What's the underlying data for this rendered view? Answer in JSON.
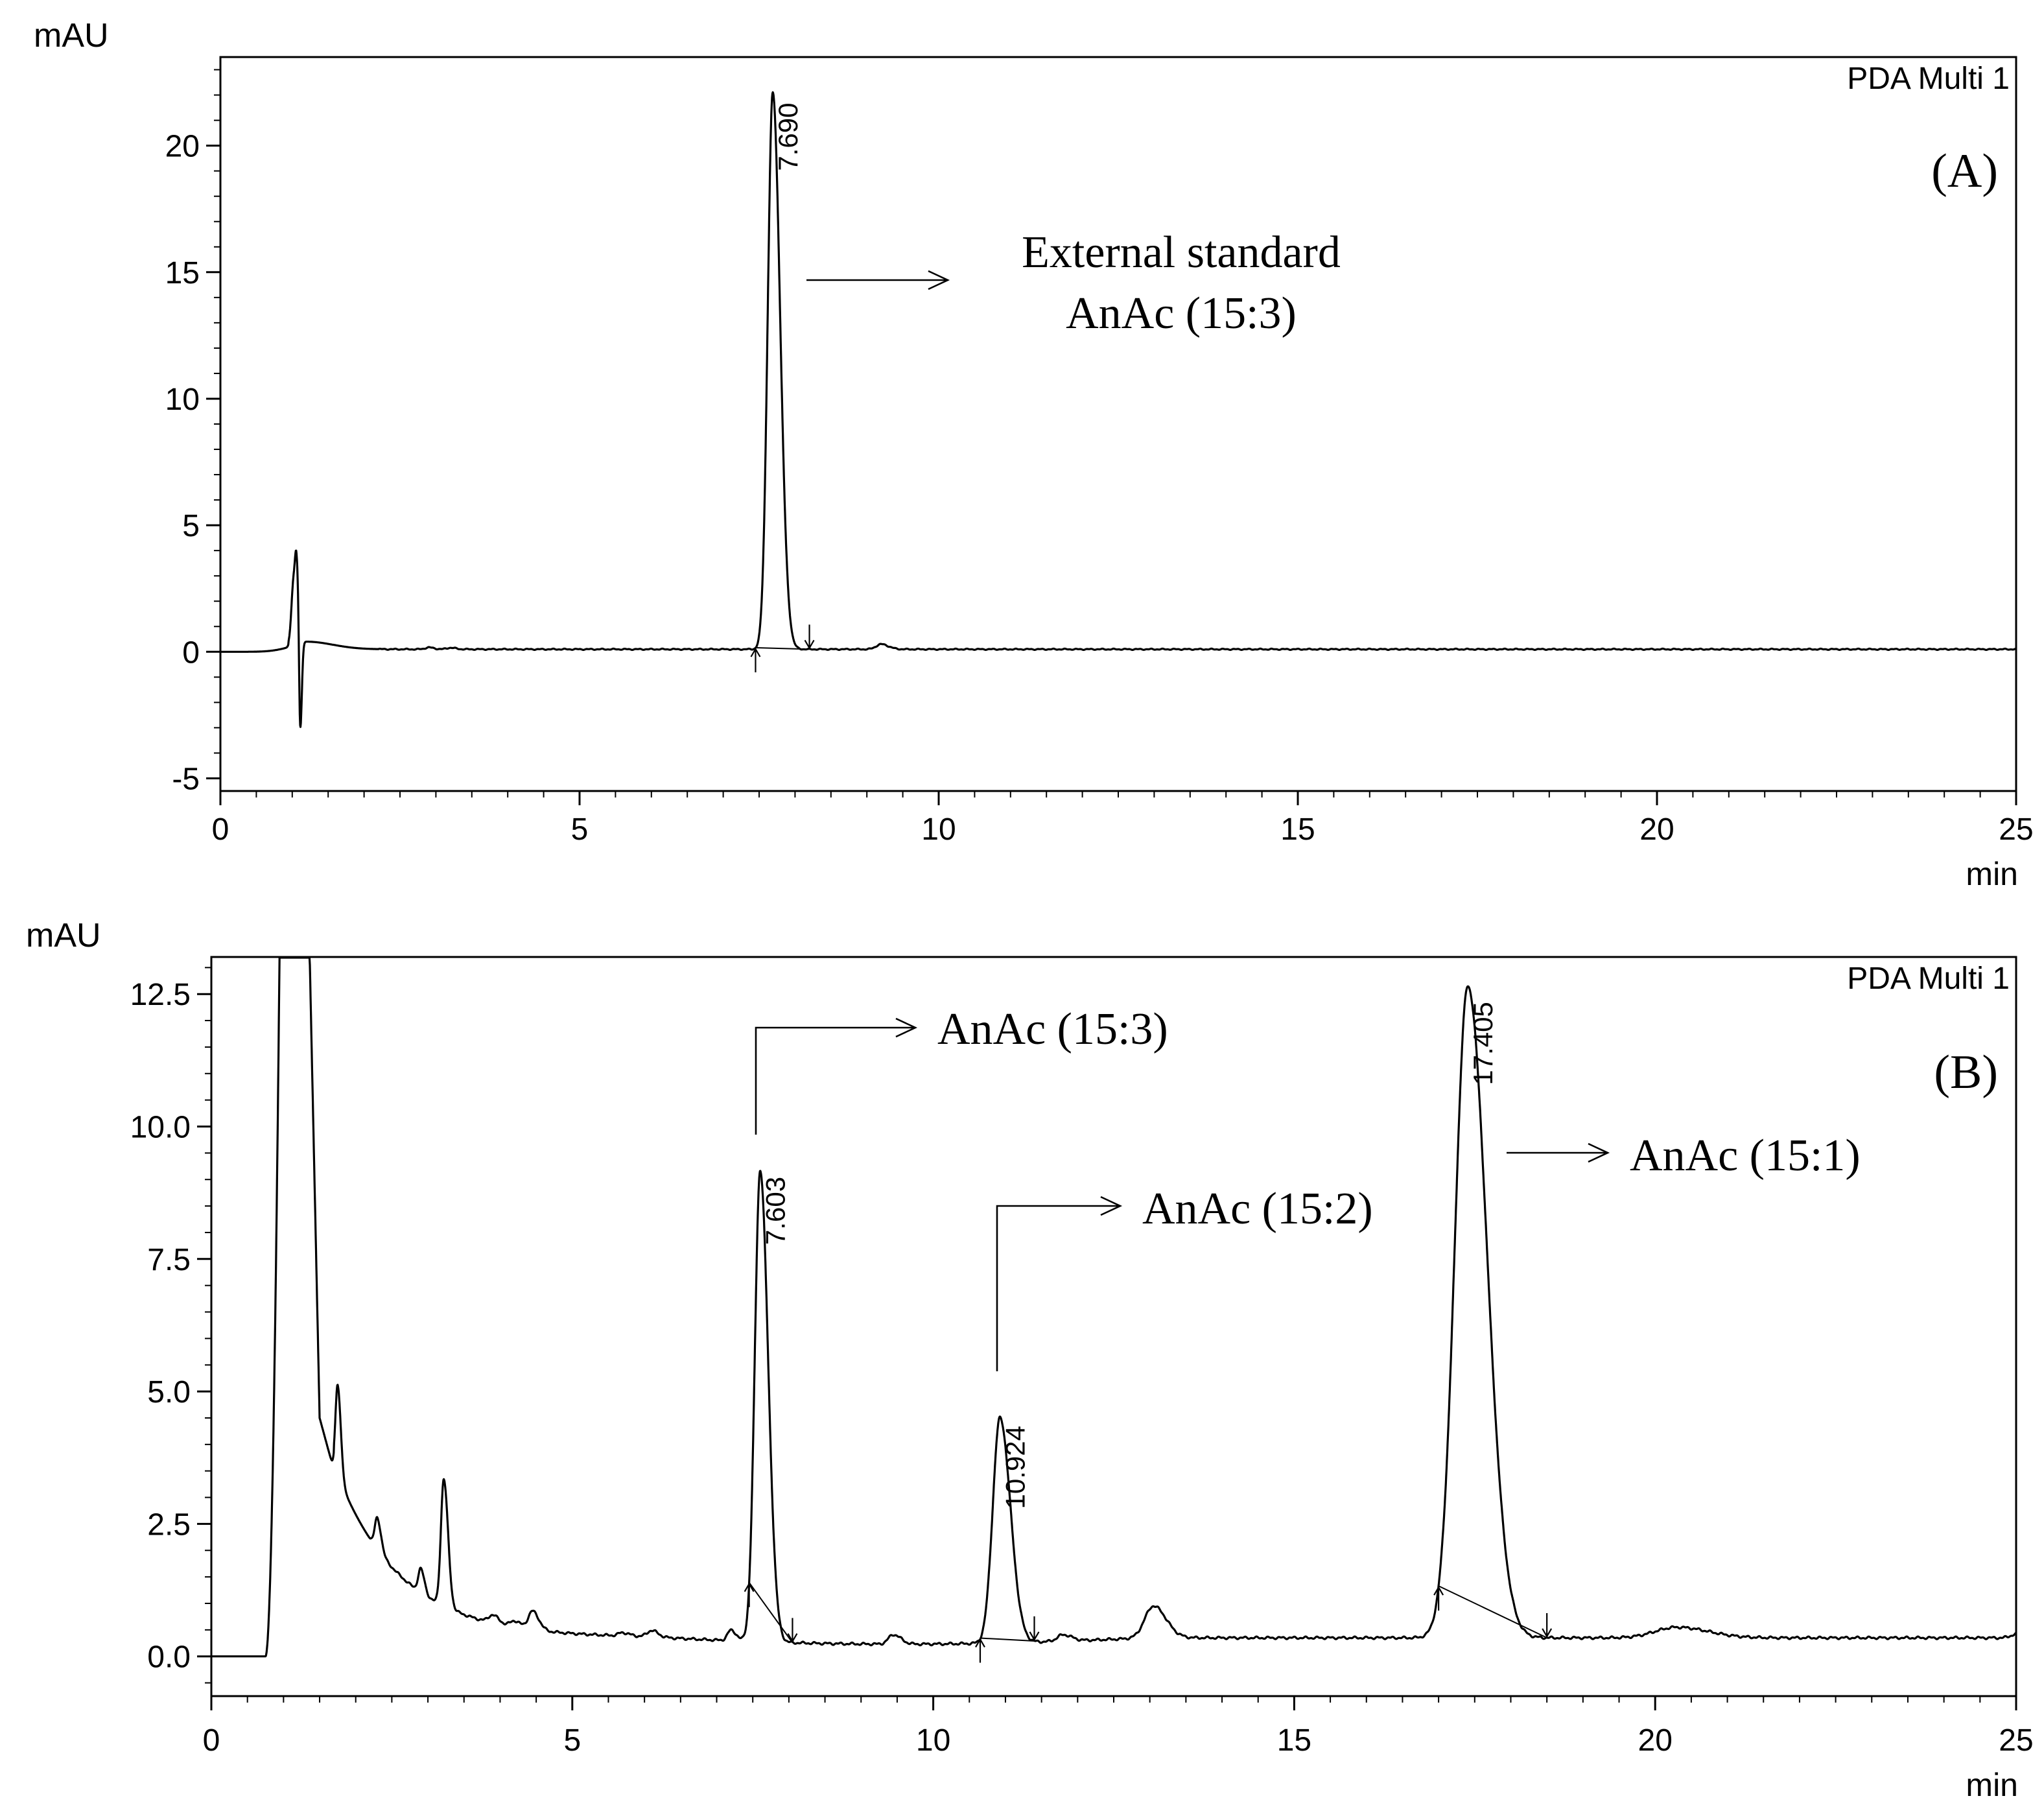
{
  "chart_data": [
    {
      "type": "line",
      "panel_label": "(A)",
      "detector": "PDA Multi 1",
      "ylabel": "mAU",
      "xlabel": "min",
      "xlim": [
        0,
        25
      ],
      "ylim": [
        -5.5,
        23.5
      ],
      "x_ticks": [
        "0",
        "5",
        "10",
        "15",
        "20",
        "25"
      ],
      "y_ticks": [
        "-5",
        "0",
        "5",
        "10",
        "15",
        "20"
      ],
      "baseline": 0.1,
      "series": [
        {
          "peaks": [
            {
              "rt": 1.02,
              "height": 2.5,
              "width": 0.03
            },
            {
              "rt": 1.06,
              "height": 1.9,
              "width": 0.02
            },
            {
              "rt": 1.11,
              "height": -4.0,
              "width": 0.015
            },
            {
              "rt": 1.2,
              "height": 0.3,
              "width": 0.25
            },
            {
              "rt": 2.9,
              "height": 0.07,
              "width": 0.05
            },
            {
              "rt": 3.2,
              "height": 0.06,
              "width": 0.05
            },
            {
              "rt": 7.69,
              "height": 22.0,
              "width": 0.07
            },
            {
              "rt": 9.2,
              "height": 0.2,
              "width": 0.07
            }
          ]
        }
      ],
      "peak_labels": [
        {
          "text": "7.690",
          "x": 7.69,
          "y": 22.0
        }
      ],
      "integration_markers": [
        {
          "start": 7.45,
          "end": 8.2
        }
      ],
      "annotations": [
        {
          "lines": [
            "External standard",
            "AnAc (15:3)"
          ]
        }
      ]
    },
    {
      "type": "line",
      "panel_label": "(B)",
      "detector": "PDA Multi 1",
      "ylabel": "mAU",
      "xlabel": "min",
      "xlim": [
        0,
        25
      ],
      "ylim": [
        -0.75,
        13.2
      ],
      "x_ticks": [
        "0",
        "5",
        "10",
        "15",
        "20",
        "25"
      ],
      "y_ticks": [
        "0.0",
        "2.5",
        "5.0",
        "7.5",
        "10.0",
        "12.5"
      ],
      "series": [
        {
          "peaks": [
            {
              "rt": 1.75,
              "height": 1.7,
              "width": 0.03
            },
            {
              "rt": 2.3,
              "height": 0.6,
              "width": 0.035
            },
            {
              "rt": 2.9,
              "height": 0.45,
              "width": 0.035
            },
            {
              "rt": 3.22,
              "height": 2.4,
              "width": 0.04
            },
            {
              "rt": 3.9,
              "height": 0.15,
              "width": 0.06
            },
            {
              "rt": 4.2,
              "height": 0.12,
              "width": 0.06
            },
            {
              "rt": 4.45,
              "height": 0.35,
              "width": 0.06
            },
            {
              "rt": 5.7,
              "height": 0.06,
              "width": 0.06
            },
            {
              "rt": 6.1,
              "height": 0.12,
              "width": 0.06
            },
            {
              "rt": 7.2,
              "height": 0.2,
              "width": 0.05
            },
            {
              "rt": 7.603,
              "height": 8.9,
              "width": 0.075
            },
            {
              "rt": 9.45,
              "height": 0.18,
              "width": 0.07
            },
            {
              "rt": 10.924,
              "height": 4.25,
              "width": 0.1
            },
            {
              "rt": 11.8,
              "height": 0.12,
              "width": 0.08
            },
            {
              "rt": 13.05,
              "height": 0.6,
              "width": 0.12
            },
            {
              "rt": 17.405,
              "height": 12.3,
              "width": 0.18
            },
            {
              "rt": 20.3,
              "height": 0.2,
              "width": 0.3
            }
          ]
        }
      ],
      "peak_labels": [
        {
          "text": "7.603",
          "x": 7.603,
          "y": 9.2
        },
        {
          "text": "10.924",
          "x": 10.924,
          "y": 4.5
        },
        {
          "text": "17.405",
          "x": 17.405,
          "y": 12.5
        }
      ],
      "integration_markers": [
        {
          "start": 7.45,
          "end": 8.05
        },
        {
          "start": 10.65,
          "end": 11.4
        },
        {
          "start": 17.0,
          "end": 18.5
        }
      ],
      "annotations": [
        {
          "text": "AnAc (15:3)"
        },
        {
          "text": "AnAc (15:2)"
        },
        {
          "text": "AnAc (15:1)"
        }
      ]
    }
  ]
}
